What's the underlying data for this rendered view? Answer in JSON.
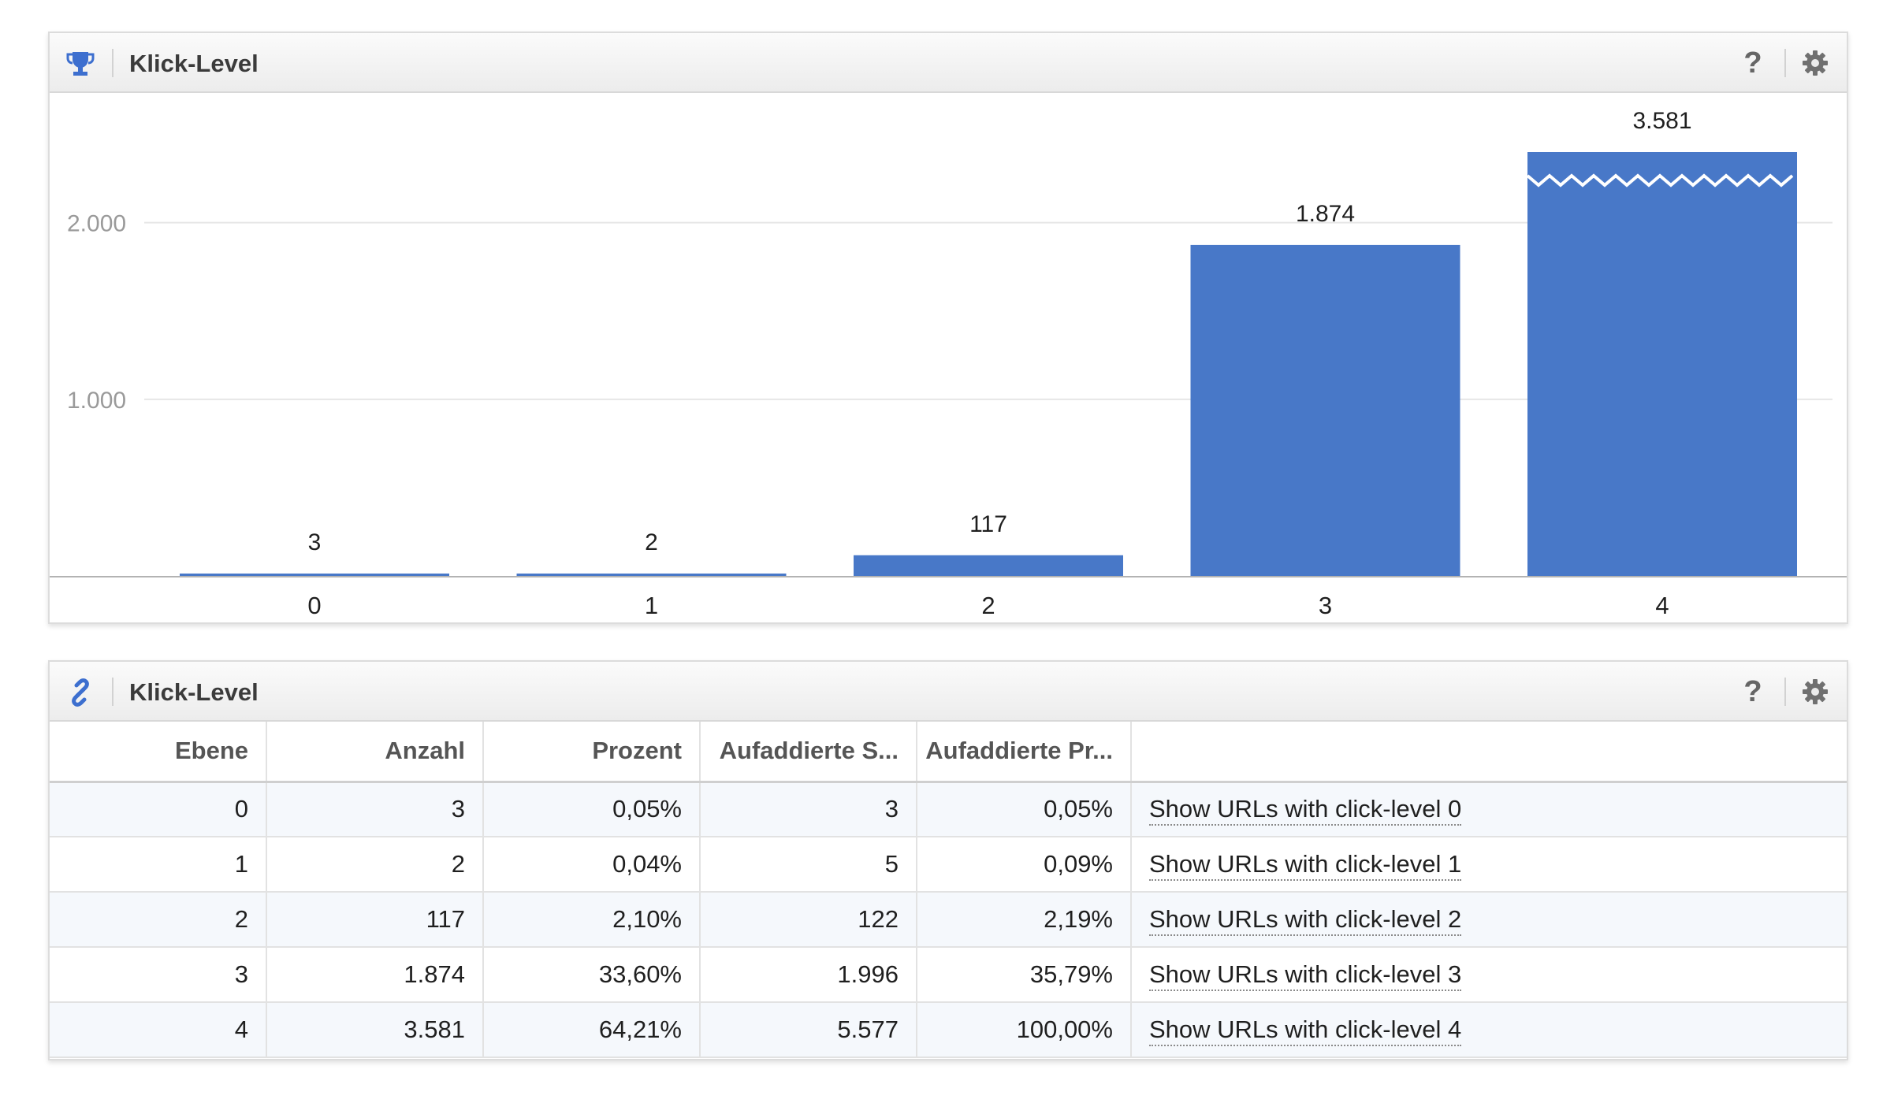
{
  "chart_panel": {
    "title": "Klick-Level",
    "help_label": "?",
    "icon": "trophy-icon",
    "settings_icon": "gear-icon"
  },
  "table_panel": {
    "title": "Klick-Level",
    "help_label": "?",
    "icon": "link-icon",
    "settings_icon": "gear-icon",
    "columns": [
      "Ebene",
      "Anzahl",
      "Prozent",
      "Aufaddierte S...",
      "Aufaddierte Pr...",
      ""
    ],
    "rows": [
      {
        "level": "0",
        "count": "3",
        "percent": "0,05%",
        "cum_sum": "3",
        "cum_percent": "0,05%",
        "link": "Show URLs with click-level 0"
      },
      {
        "level": "1",
        "count": "2",
        "percent": "0,04%",
        "cum_sum": "5",
        "cum_percent": "0,09%",
        "link": "Show URLs with click-level 1"
      },
      {
        "level": "2",
        "count": "117",
        "percent": "2,10%",
        "cum_sum": "122",
        "cum_percent": "2,19%",
        "link": "Show URLs with click-level 2"
      },
      {
        "level": "3",
        "count": "1.874",
        "percent": "33,60%",
        "cum_sum": "1.996",
        "cum_percent": "35,79%",
        "link": "Show URLs with click-level 3"
      },
      {
        "level": "4",
        "count": "3.581",
        "percent": "64,21%",
        "cum_sum": "5.577",
        "cum_percent": "100,00%",
        "link": "Show URLs with click-level 4"
      }
    ]
  },
  "colors": {
    "bar": "#4878c8",
    "grid": "#e6e6e6",
    "axis": "#b3b3b3",
    "tick_label": "#9a9a9a",
    "icon_blue": "#3d6fcf"
  },
  "chart_data": {
    "type": "bar",
    "title": "Klick-Level",
    "categories": [
      "0",
      "1",
      "2",
      "3",
      "4"
    ],
    "values": [
      3,
      2,
      117,
      1874,
      3581
    ],
    "value_labels": [
      "3",
      "2",
      "117",
      "1.874",
      "3.581"
    ],
    "ylim": [
      0,
      2400
    ],
    "yticks": [
      1000,
      2000
    ],
    "ytick_labels": [
      "1.000",
      "2.000"
    ],
    "axis_break_on": "4",
    "grid": true,
    "legend": "none"
  }
}
